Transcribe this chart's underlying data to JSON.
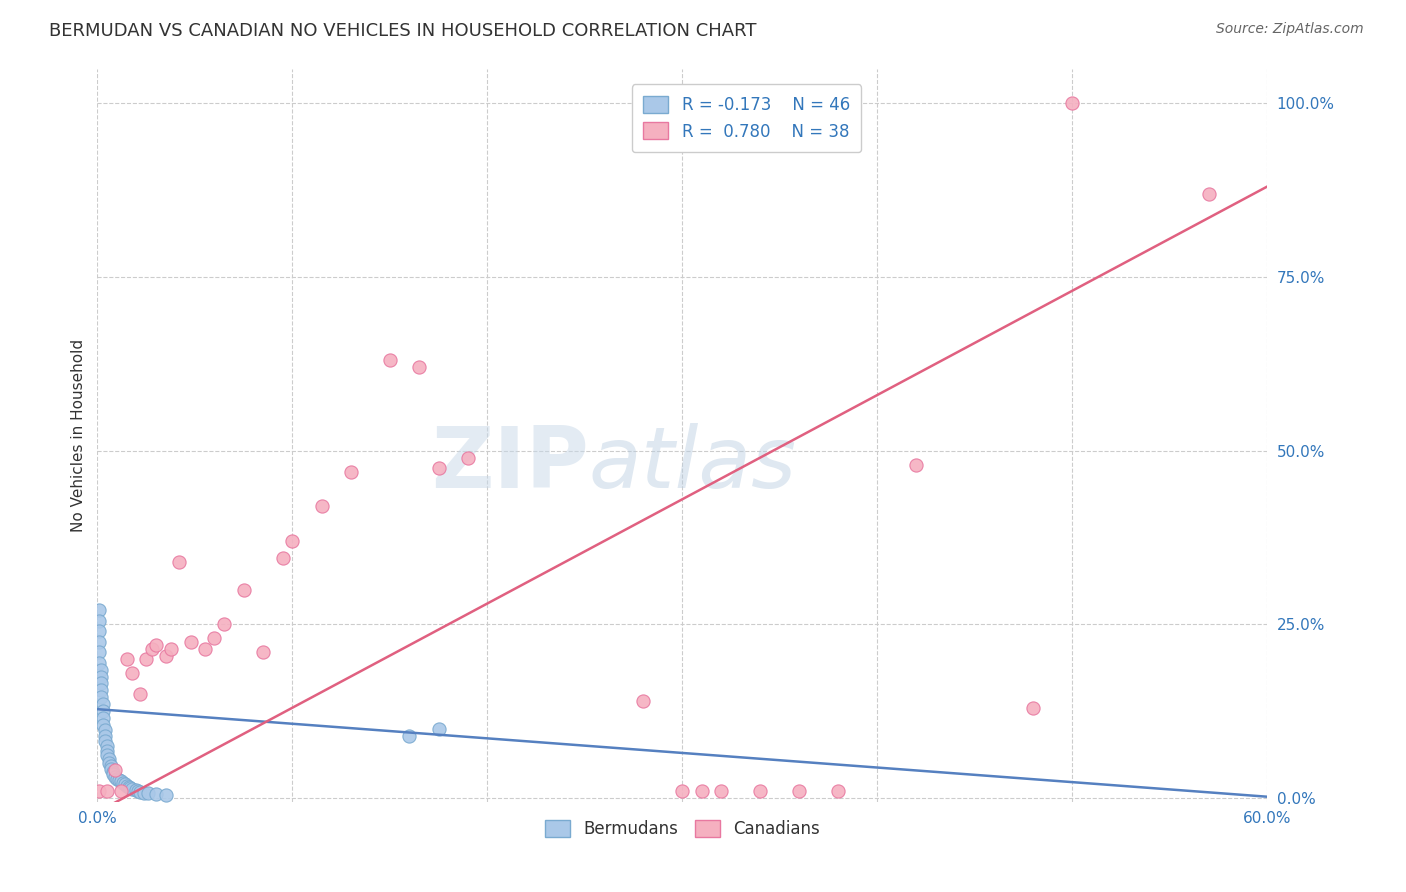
{
  "title": "BERMUDAN VS CANADIAN NO VEHICLES IN HOUSEHOLD CORRELATION CHART",
  "source": "Source: ZipAtlas.com",
  "ylabel": "No Vehicles in Household",
  "xlim": [
    0.0,
    0.6
  ],
  "ylim": [
    -0.005,
    1.05
  ],
  "xticks": [
    0.0,
    0.1,
    0.2,
    0.3,
    0.4,
    0.5,
    0.6
  ],
  "xtick_labels": [
    "0.0%",
    "",
    "",
    "",
    "",
    "",
    "60.0%"
  ],
  "ytick_labels_right": [
    "0.0%",
    "25.0%",
    "50.0%",
    "75.0%",
    "100.0%"
  ],
  "ytick_positions_right": [
    0.0,
    0.25,
    0.5,
    0.75,
    1.0
  ],
  "legend_r_blue": "R = -0.173",
  "legend_n_blue": "N = 46",
  "legend_r_pink": "R =  0.780",
  "legend_n_pink": "N = 38",
  "blue_color": "#aac8e8",
  "pink_color": "#f5b0c0",
  "blue_edge_color": "#7aaad0",
  "pink_edge_color": "#e878a0",
  "blue_line_color": "#5580c0",
  "pink_line_color": "#e06080",
  "blue_x": [
    0.001,
    0.001,
    0.001,
    0.001,
    0.001,
    0.001,
    0.002,
    0.002,
    0.002,
    0.002,
    0.002,
    0.003,
    0.003,
    0.003,
    0.003,
    0.004,
    0.004,
    0.004,
    0.005,
    0.005,
    0.005,
    0.006,
    0.006,
    0.007,
    0.007,
    0.008,
    0.008,
    0.009,
    0.01,
    0.011,
    0.012,
    0.013,
    0.014,
    0.015,
    0.016,
    0.017,
    0.018,
    0.02,
    0.021,
    0.022,
    0.024,
    0.026,
    0.03,
    0.035,
    0.16,
    0.175
  ],
  "blue_y": [
    0.27,
    0.255,
    0.24,
    0.225,
    0.21,
    0.195,
    0.185,
    0.175,
    0.165,
    0.155,
    0.145,
    0.135,
    0.125,
    0.115,
    0.105,
    0.098,
    0.09,
    0.082,
    0.075,
    0.068,
    0.062,
    0.056,
    0.05,
    0.046,
    0.042,
    0.038,
    0.034,
    0.03,
    0.028,
    0.026,
    0.024,
    0.022,
    0.02,
    0.018,
    0.016,
    0.014,
    0.013,
    0.011,
    0.01,
    0.009,
    0.008,
    0.007,
    0.006,
    0.005,
    0.09,
    0.1
  ],
  "pink_x": [
    0.001,
    0.005,
    0.009,
    0.012,
    0.015,
    0.018,
    0.022,
    0.025,
    0.028,
    0.03,
    0.035,
    0.038,
    0.042,
    0.048,
    0.055,
    0.06,
    0.065,
    0.075,
    0.085,
    0.095,
    0.1,
    0.115,
    0.13,
    0.15,
    0.165,
    0.175,
    0.19,
    0.28,
    0.3,
    0.31,
    0.32,
    0.34,
    0.36,
    0.38,
    0.42,
    0.48,
    0.5,
    0.57
  ],
  "pink_y": [
    0.01,
    0.01,
    0.04,
    0.01,
    0.2,
    0.18,
    0.15,
    0.2,
    0.215,
    0.22,
    0.205,
    0.215,
    0.34,
    0.225,
    0.215,
    0.23,
    0.25,
    0.3,
    0.21,
    0.345,
    0.37,
    0.42,
    0.47,
    0.63,
    0.62,
    0.475,
    0.49,
    0.14,
    0.01,
    0.01,
    0.01,
    0.01,
    0.01,
    0.01,
    0.48,
    0.13,
    1.0,
    0.87
  ],
  "blue_trend_x": [
    0.0,
    0.6
  ],
  "blue_trend_y": [
    0.128,
    0.002
  ],
  "pink_trend_x": [
    0.0,
    0.6
  ],
  "pink_trend_y": [
    -0.02,
    0.88
  ],
  "background_color": "#ffffff",
  "grid_color": "#cccccc",
  "title_fontsize": 13,
  "axis_label_fontsize": 11,
  "tick_fontsize": 11,
  "source_fontsize": 10
}
